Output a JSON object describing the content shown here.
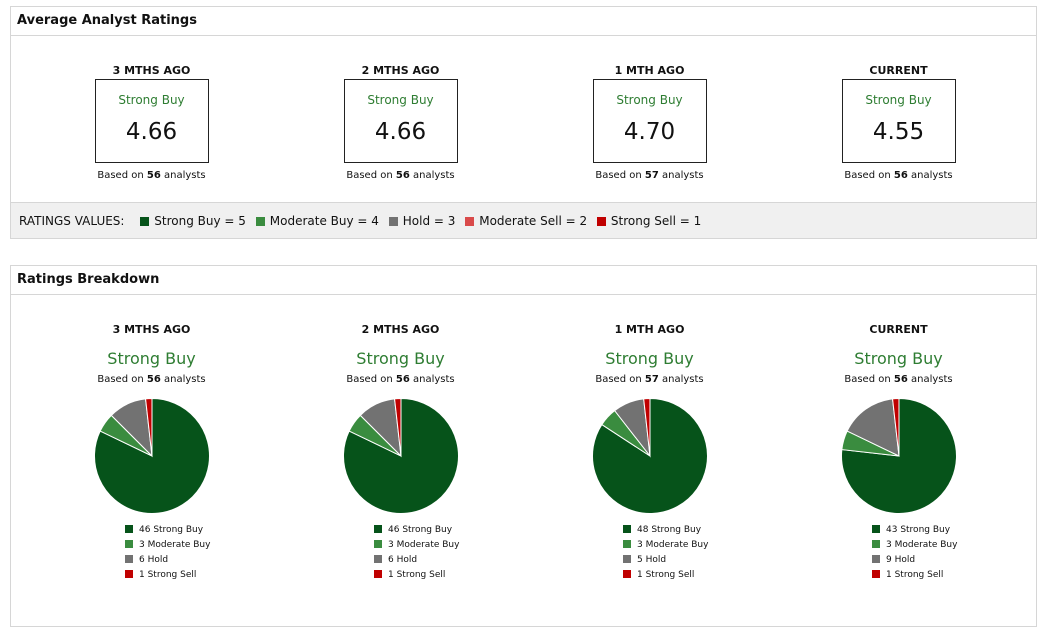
{
  "avg_panel": {
    "title": "Average Analyst Ratings",
    "periods": [
      {
        "label": "3 MTHS AGO",
        "rating": "Strong Buy",
        "value": "4.66",
        "based_prefix": "Based on",
        "count": "56",
        "based_suffix": "analysts"
      },
      {
        "label": "2 MTHS AGO",
        "rating": "Strong Buy",
        "value": "4.66",
        "based_prefix": "Based on",
        "count": "56",
        "based_suffix": "analysts"
      },
      {
        "label": "1 MTH AGO",
        "rating": "Strong Buy",
        "value": "4.70",
        "based_prefix": "Based on",
        "count": "57",
        "based_suffix": "analysts"
      },
      {
        "label": "CURRENT",
        "rating": "Strong Buy",
        "value": "4.55",
        "based_prefix": "Based on",
        "count": "56",
        "based_suffix": "analysts"
      }
    ],
    "ratings_values": {
      "label": "RATINGS VALUES:",
      "items": [
        {
          "text": "Strong Buy = 5",
          "color": "#06531a"
        },
        {
          "text": "Moderate Buy = 4",
          "color": "#3a8c3f"
        },
        {
          "text": "Hold = 3",
          "color": "#727272"
        },
        {
          "text": "Moderate Sell = 2",
          "color": "#d94a4a"
        },
        {
          "text": "Strong Sell = 1",
          "color": "#c00000"
        }
      ]
    }
  },
  "breakdown_panel": {
    "title": "Ratings Breakdown"
  },
  "colors": {
    "strong_buy": "#06531a",
    "moderate_buy": "#3a8c3f",
    "hold": "#727272",
    "strong_sell": "#c00000",
    "rating_text": "#2e7d32"
  },
  "chart_data": [
    {
      "type": "pie",
      "title": "3 MTHS AGO",
      "subtitle": "Strong Buy",
      "based_prefix": "Based on",
      "count": "56",
      "based_suffix": "analysts",
      "categories": [
        "Strong Buy",
        "Moderate Buy",
        "Hold",
        "Strong Sell"
      ],
      "values": [
        46,
        3,
        6,
        1
      ],
      "labels": [
        "46 Strong Buy",
        "3 Moderate Buy",
        "6 Hold",
        "1 Strong Sell"
      ],
      "colors": [
        "#06531a",
        "#3a8c3f",
        "#727272",
        "#c00000"
      ]
    },
    {
      "type": "pie",
      "title": "2 MTHS AGO",
      "subtitle": "Strong Buy",
      "based_prefix": "Based on",
      "count": "56",
      "based_suffix": "analysts",
      "categories": [
        "Strong Buy",
        "Moderate Buy",
        "Hold",
        "Strong Sell"
      ],
      "values": [
        46,
        3,
        6,
        1
      ],
      "labels": [
        "46 Strong Buy",
        "3 Moderate Buy",
        "6 Hold",
        "1 Strong Sell"
      ],
      "colors": [
        "#06531a",
        "#3a8c3f",
        "#727272",
        "#c00000"
      ]
    },
    {
      "type": "pie",
      "title": "1 MTH AGO",
      "subtitle": "Strong Buy",
      "based_prefix": "Based on",
      "count": "57",
      "based_suffix": "analysts",
      "categories": [
        "Strong Buy",
        "Moderate Buy",
        "Hold",
        "Strong Sell"
      ],
      "values": [
        48,
        3,
        5,
        1
      ],
      "labels": [
        "48 Strong Buy",
        "3 Moderate Buy",
        "5 Hold",
        "1 Strong Sell"
      ],
      "colors": [
        "#06531a",
        "#3a8c3f",
        "#727272",
        "#c00000"
      ]
    },
    {
      "type": "pie",
      "title": "CURRENT",
      "subtitle": "Strong Buy",
      "based_prefix": "Based on",
      "count": "56",
      "based_suffix": "analysts",
      "categories": [
        "Strong Buy",
        "Moderate Buy",
        "Hold",
        "Strong Sell"
      ],
      "values": [
        43,
        3,
        9,
        1
      ],
      "labels": [
        "43 Strong Buy",
        "3 Moderate Buy",
        "9 Hold",
        "1 Strong Sell"
      ],
      "colors": [
        "#06531a",
        "#3a8c3f",
        "#727272",
        "#c00000"
      ]
    }
  ]
}
